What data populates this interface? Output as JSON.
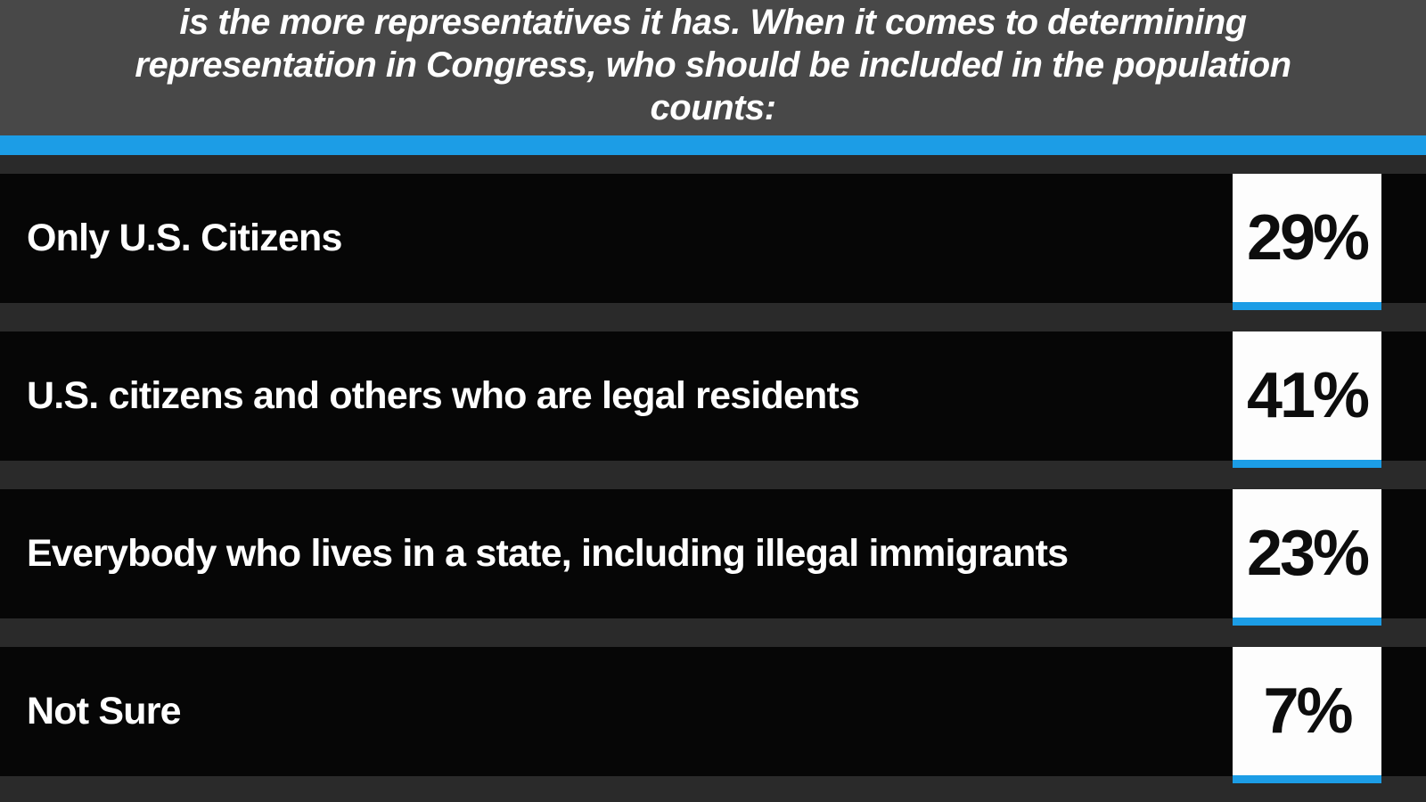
{
  "header": {
    "line1": "is the more representatives it has. When it comes to determining",
    "line2": "representation in Congress, who should be included in the population",
    "line3": "counts:"
  },
  "rows": [
    {
      "label": "Only U.S. Citizens",
      "value": "29%"
    },
    {
      "label": "U.S. citizens and others who are legal residents",
      "value": "41%"
    },
    {
      "label": "Everybody who lives in a state, including illegal immigrants",
      "value": "23%"
    },
    {
      "label": "Not Sure",
      "value": "7%"
    }
  ],
  "colors": {
    "accent_blue": "#1c9de6",
    "header_bg": "#484848",
    "row_bg": "#060606",
    "gap_bg": "#2a2a2a",
    "box_bg": "#fdfdfd",
    "label_text": "#ffffff",
    "pct_text": "#0d0d0d"
  },
  "chart_data": {
    "type": "bar",
    "title": "is the more representatives it has. When it comes to determining representation in Congress, who should be included in the population counts:",
    "categories": [
      "Only U.S. Citizens",
      "U.S. citizens and others who are legal residents",
      "Everybody who lives in a state, including illegal immigrants",
      "Not Sure"
    ],
    "values": [
      29,
      41,
      23,
      7
    ],
    "unit": "%",
    "xlabel": "",
    "ylabel": "",
    "legend": false,
    "grid": false,
    "layout": "category list with percentage callout boxes, accent underline in blue"
  }
}
